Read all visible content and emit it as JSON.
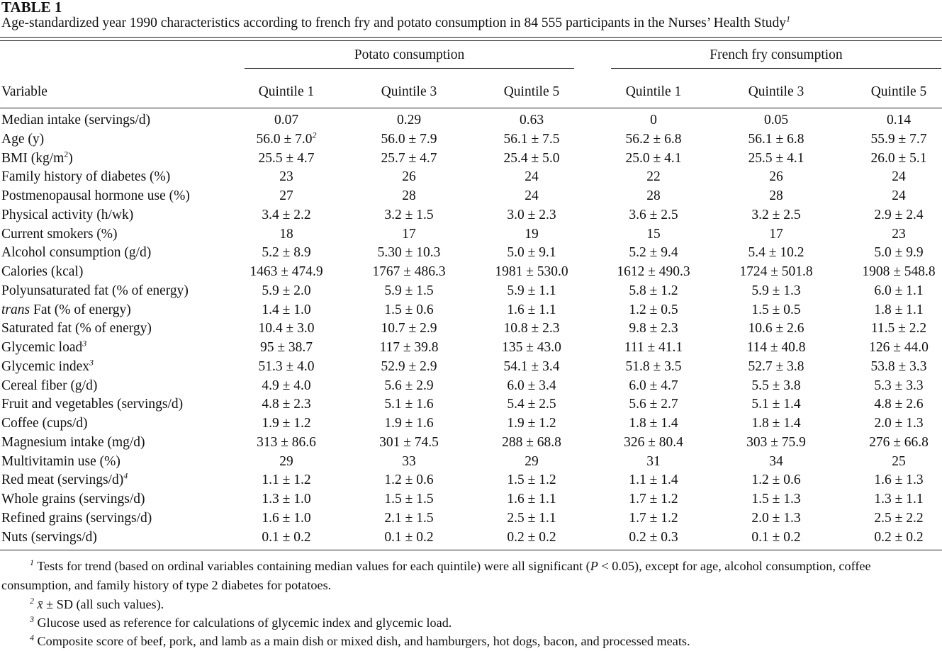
{
  "title": "TABLE 1",
  "caption": "Age-standardized year 1990 characteristics according to french fry and potato consumption in 84 555 participants in the Nurses’ Health Study",
  "caption_sup": "1",
  "groups": [
    "Potato consumption",
    "French fry consumption"
  ],
  "variable_header": "Variable",
  "quintile_headers": [
    "Quintile 1",
    "Quintile 3",
    "Quintile 5",
    "Quintile 1",
    "Quintile 3",
    "Quintile 5"
  ],
  "rows": [
    {
      "label": "Median intake (servings/d)",
      "values": [
        "0.07",
        "0.29",
        "0.63",
        "0",
        "0.05",
        "0.14"
      ]
    },
    {
      "label": "Age (y)",
      "values": [
        "56.0 ± 7.0",
        "56.0 ± 7.9",
        "56.1 ± 7.5",
        "56.2 ± 6.8",
        "56.1 ± 6.8",
        "55.9 ± 7.7"
      ],
      "value0_sup": "2"
    },
    {
      "label": "BMI (kg/m",
      "label_sup": "2",
      "label_suffix": ")",
      "values": [
        "25.5 ± 4.7",
        "25.7 ± 4.7",
        "25.4 ± 5.0",
        "25.0 ± 4.1",
        "25.5 ± 4.1",
        "26.0 ± 5.1"
      ]
    },
    {
      "label": "Family history of diabetes (%)",
      "values": [
        "23",
        "26",
        "24",
        "22",
        "26",
        "24"
      ]
    },
    {
      "label": "Postmenopausal hormone use (%)",
      "values": [
        "27",
        "28",
        "24",
        "28",
        "28",
        "24"
      ]
    },
    {
      "label": "Physical activity (h/wk)",
      "values": [
        "3.4 ± 2.2",
        "3.2 ± 1.5",
        "3.0 ± 2.3",
        "3.6 ± 2.5",
        "3.2 ± 2.5",
        "2.9 ± 2.4"
      ]
    },
    {
      "label": "Current smokers (%)",
      "values": [
        "18",
        "17",
        "19",
        "15",
        "17",
        "23"
      ]
    },
    {
      "label": "Alcohol consumption (g/d)",
      "values": [
        "5.2 ± 8.9",
        "5.30 ± 10.3",
        "5.0 ± 9.1",
        "5.2 ± 9.4",
        "5.4 ± 10.2",
        "5.0 ± 9.9"
      ]
    },
    {
      "label": "Calories (kcal)",
      "values": [
        "1463 ± 474.9",
        "1767 ± 486.3",
        "1981 ± 530.0",
        "1612 ± 490.3",
        "1724 ± 501.8",
        "1908 ± 548.8"
      ]
    },
    {
      "label": "Polyunsaturated fat (% of energy)",
      "values": [
        "5.9 ± 2.0",
        "5.9 ± 1.5",
        "5.9 ± 1.1",
        "5.8 ± 1.2",
        "5.9 ± 1.3",
        "6.0 ± 1.1"
      ]
    },
    {
      "label_italic": "trans",
      "label": " Fat (% of energy)",
      "values": [
        "1.4 ± 1.0",
        "1.5 ± 0.6",
        "1.6 ± 1.1",
        "1.2 ± 0.5",
        "1.5 ± 0.5",
        "1.8 ± 1.1"
      ]
    },
    {
      "label": "Saturated fat (% of energy)",
      "values": [
        "10.4 ± 3.0",
        "10.7 ± 2.9",
        "10.8 ± 2.3",
        "9.8 ± 2.3",
        "10.6 ± 2.6",
        "11.5 ± 2.2"
      ]
    },
    {
      "label": "Glycemic load",
      "label_sup": "3",
      "values": [
        "95 ± 38.7",
        "117 ± 39.8",
        "135 ± 43.0",
        "111 ± 41.1",
        "114 ± 40.8",
        "126 ± 44.0"
      ]
    },
    {
      "label": "Glycemic index",
      "label_sup": "3",
      "values": [
        "51.3 ± 4.0",
        "52.9 ± 2.9",
        "54.1 ± 3.4",
        "51.8 ± 3.5",
        "52.7 ± 3.8",
        "53.8 ± 3.3"
      ]
    },
    {
      "label": "Cereal fiber (g/d)",
      "values": [
        "4.9 ± 4.0",
        "5.6 ± 2.9",
        "6.0 ± 3.4",
        "6.0 ± 4.7",
        "5.5 ± 3.8",
        "5.3 ± 3.3"
      ]
    },
    {
      "label": "Fruit and vegetables (servings/d)",
      "values": [
        "4.8 ± 2.3",
        "5.1 ± 1.6",
        "5.4 ± 2.5",
        "5.6 ± 2.7",
        "5.1 ± 1.4",
        "4.8 ± 2.6"
      ]
    },
    {
      "label": "Coffee (cups/d)",
      "values": [
        "1.9 ± 1.2",
        "1.9 ± 1.6",
        "1.9 ± 1.2",
        "1.8 ± 1.4",
        "1.8 ± 1.4",
        "2.0 ± 1.3"
      ]
    },
    {
      "label": "Magnesium intake (mg/d)",
      "values": [
        "313 ± 86.6",
        "301 ± 74.5",
        "288 ± 68.8",
        "326 ± 80.4",
        "303 ± 75.9",
        "276 ± 66.8"
      ]
    },
    {
      "label": "Multivitamin use (%)",
      "values": [
        "29",
        "33",
        "29",
        "31",
        "34",
        "25"
      ]
    },
    {
      "label": "Red meat (servings/d)",
      "label_sup": "4",
      "values": [
        "1.1 ± 1.2",
        "1.2 ± 0.6",
        "1.5 ± 1.2",
        "1.1 ± 1.4",
        "1.2 ± 0.6",
        "1.6 ± 1.3"
      ]
    },
    {
      "label": "Whole grains (servings/d)",
      "values": [
        "1.3 ± 1.0",
        "1.5 ± 1.5",
        "1.6 ± 1.1",
        "1.7 ± 1.2",
        "1.5 ± 1.3",
        "1.3 ± 1.1"
      ]
    },
    {
      "label": "Refined grains (servings/d)",
      "values": [
        "1.6 ± 1.0",
        "2.1 ± 1.5",
        "2.5 ± 1.1",
        "1.7 ± 1.2",
        "2.0 ± 1.3",
        "2.5 ± 2.2"
      ]
    },
    {
      "label": "Nuts (servings/d)",
      "values": [
        "0.1 ± 0.2",
        "0.1 ± 0.2",
        "0.2 ± 0.2",
        "0.2 ± 0.3",
        "0.1 ± 0.2",
        "0.2 ± 0.2"
      ]
    }
  ],
  "footnotes": {
    "fn1": {
      "mark": "1",
      "text_a": " Tests for trend (based on ordinal variables containing median values for each quintile) were all significant (",
      "p": "P",
      "text_b": " < 0.05), except for age, alcohol consumption, coffee consumption, and family history of type 2 diabetes for potatoes."
    },
    "fn2": {
      "mark": "2",
      "xbar": "x̄",
      "text": " ± SD (all such values)."
    },
    "fn3": {
      "mark": "3",
      "text": " Glucose used as reference for calculations of glycemic index and glycemic load."
    },
    "fn4": {
      "mark": "4",
      "text": " Composite score of beef, pork, and lamb as a main dish or mixed dish, and hamburgers, hot dogs, bacon, and processed meats."
    }
  }
}
